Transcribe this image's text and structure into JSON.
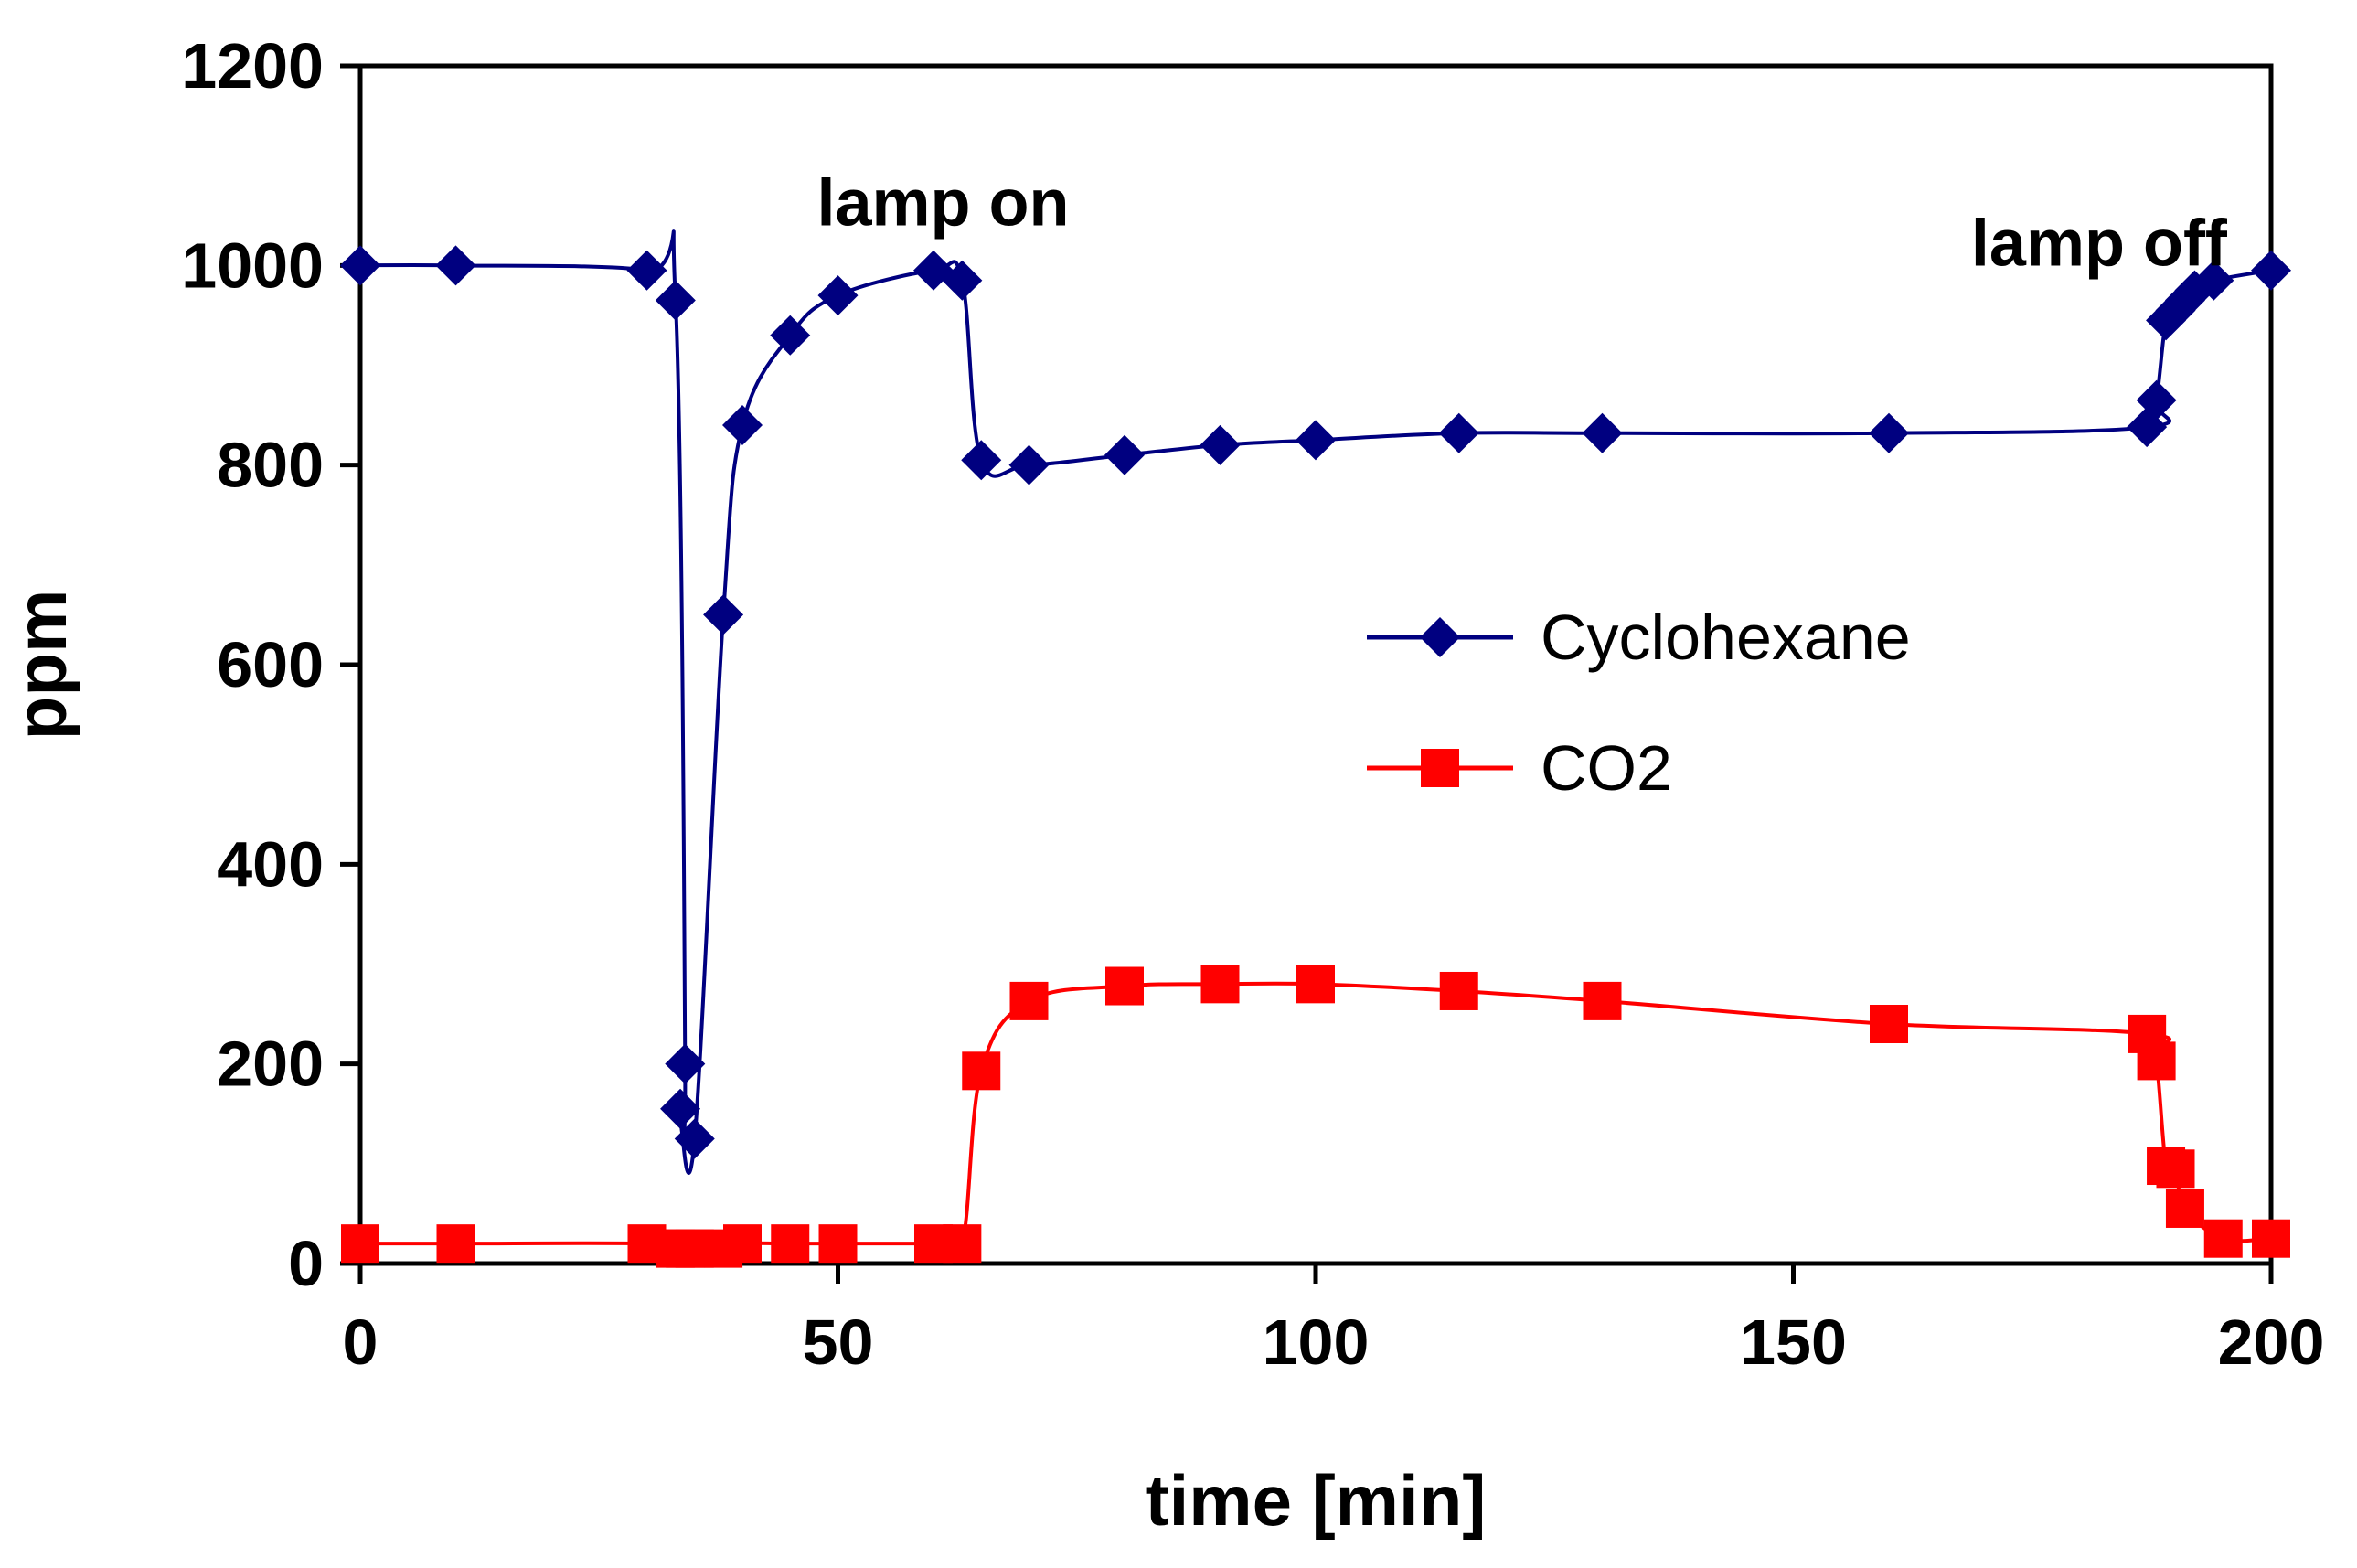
{
  "chart_data": {
    "type": "line",
    "title": "",
    "xlabel": "time [min]",
    "ylabel": "ppm",
    "xlim": [
      0,
      200
    ],
    "ylim": [
      0,
      1200
    ],
    "xticks": [
      0,
      50,
      100,
      150,
      200
    ],
    "yticks": [
      0,
      200,
      400,
      600,
      800,
      1000,
      1200
    ],
    "grid": false,
    "legend": "center-right",
    "annotations": [
      {
        "text": "lamp on",
        "x": 61,
        "y": 1040
      },
      {
        "text": "lamp off",
        "x": 182,
        "y": 1000
      }
    ],
    "series": [
      {
        "name": "Cyclohexane",
        "color": "#000080",
        "marker": "diamond",
        "x": [
          0,
          10,
          30,
          33,
          34,
          33.5,
          35,
          38,
          40,
          45,
          50,
          60,
          63,
          65,
          70,
          80,
          90,
          100,
          115,
          130,
          160,
          187,
          188,
          189,
          190,
          191,
          192,
          194,
          200
        ],
        "y": [
          1000,
          1000,
          995,
          965,
          200,
          155,
          125,
          650,
          840,
          930,
          970,
          995,
          985,
          805,
          800,
          810,
          820,
          825,
          832,
          832,
          832,
          838,
          865,
          945,
          955,
          965,
          975,
          985,
          995
        ]
      },
      {
        "name": "CO2",
        "color": "#ff0000",
        "marker": "square",
        "x": [
          0,
          10,
          30,
          33,
          34,
          35,
          38,
          40,
          45,
          50,
          60,
          63,
          65,
          70,
          80,
          90,
          100,
          115,
          130,
          160,
          187,
          188,
          189,
          190,
          191,
          195,
          200
        ],
        "y": [
          20,
          20,
          20,
          15,
          15,
          15,
          15,
          20,
          20,
          20,
          20,
          20,
          193,
          263,
          278,
          280,
          280,
          273,
          263,
          240,
          230,
          203,
          98,
          95,
          55,
          25,
          25
        ]
      }
    ]
  }
}
